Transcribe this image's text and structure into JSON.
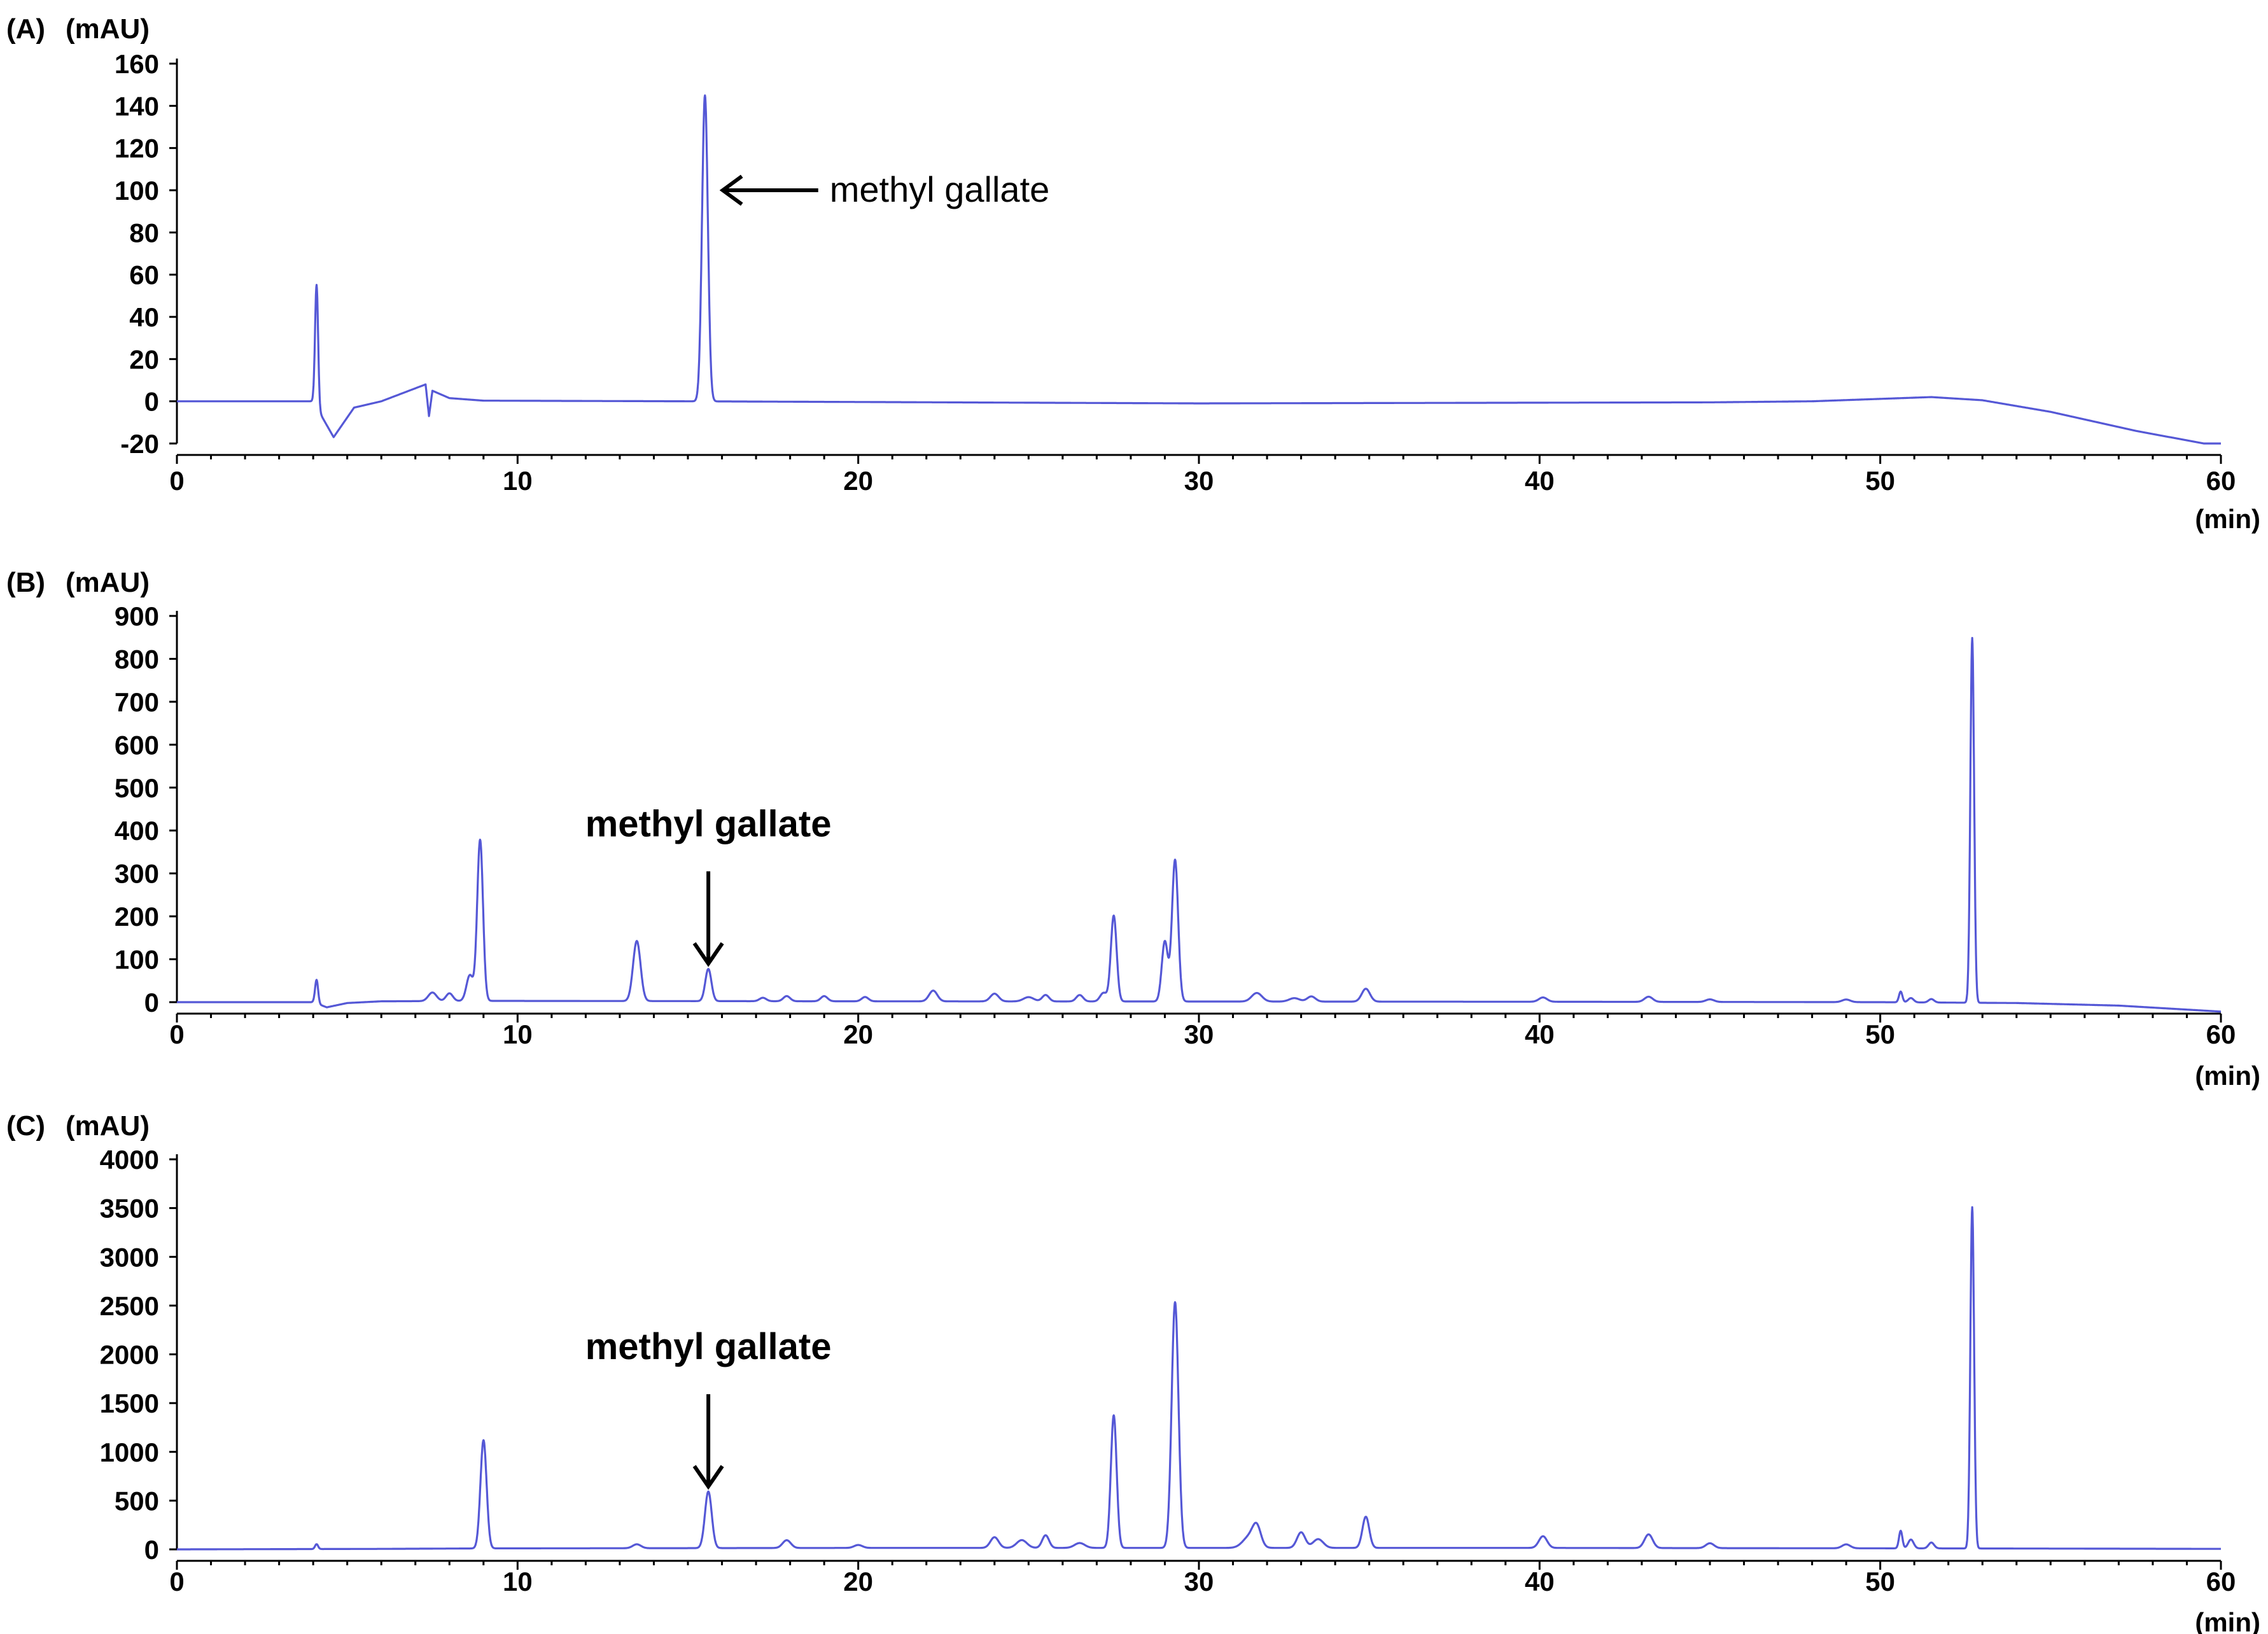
{
  "chart_data": [
    {
      "type": "line",
      "panel_label": "(A)",
      "ylabel": "(mAU)",
      "xlabel": "(min)",
      "xlim": [
        0,
        60
      ],
      "ylim": [
        -20,
        160
      ],
      "xticks": [
        0,
        10,
        20,
        30,
        40,
        50,
        60
      ],
      "yticks": [
        -20,
        0,
        20,
        40,
        60,
        80,
        100,
        120,
        140,
        160
      ],
      "baseline": [
        [
          0,
          0
        ],
        [
          4.0,
          0
        ],
        [
          4.6,
          -17
        ],
        [
          5.2,
          -3
        ],
        [
          6.0,
          0
        ],
        [
          7.3,
          8
        ],
        [
          7.4,
          -7
        ],
        [
          7.5,
          5
        ],
        [
          8.0,
          1.5
        ],
        [
          9.0,
          0.3
        ],
        [
          15.0,
          0
        ],
        [
          30.0,
          -1
        ],
        [
          45.0,
          -0.5
        ],
        [
          48.0,
          0
        ],
        [
          51.5,
          2
        ],
        [
          53.0,
          0.5
        ],
        [
          55.0,
          -5
        ],
        [
          57.5,
          -14
        ],
        [
          59.5,
          -20
        ],
        [
          60.0,
          -20
        ]
      ],
      "peaks": [
        [
          4.1,
          58,
          0.045
        ],
        [
          15.5,
          145,
          0.085
        ]
      ],
      "annotation": {
        "text": "methyl gallate",
        "x": 15.5,
        "y": 100,
        "bold": false,
        "arrow": "left"
      }
    },
    {
      "type": "line",
      "panel_label": "(B)",
      "ylabel": "(mAU)",
      "xlabel": "(min)",
      "xlim": [
        0,
        60
      ],
      "ylim": [
        -20,
        900
      ],
      "xticks": [
        0,
        10,
        20,
        30,
        40,
        50,
        60
      ],
      "yticks": [
        0,
        100,
        200,
        300,
        400,
        500,
        600,
        700,
        800,
        900
      ],
      "baseline": [
        [
          0,
          0
        ],
        [
          4.0,
          0
        ],
        [
          4.4,
          -12
        ],
        [
          5.0,
          -2
        ],
        [
          6.0,
          2
        ],
        [
          9.0,
          3
        ],
        [
          20.0,
          2
        ],
        [
          40.0,
          1
        ],
        [
          50.0,
          0
        ],
        [
          54.0,
          -2
        ],
        [
          57.0,
          -8
        ],
        [
          60.0,
          -22
        ]
      ],
      "peaks": [
        [
          4.1,
          55,
          0.045
        ],
        [
          7.5,
          20,
          0.12
        ],
        [
          8.0,
          18,
          0.1
        ],
        [
          8.6,
          60,
          0.1
        ],
        [
          8.9,
          375,
          0.085
        ],
        [
          13.5,
          140,
          0.11
        ],
        [
          15.6,
          75,
          0.09
        ],
        [
          17.2,
          8,
          0.1
        ],
        [
          17.9,
          12,
          0.1
        ],
        [
          19.0,
          12,
          0.1
        ],
        [
          20.2,
          10,
          0.1
        ],
        [
          22.2,
          25,
          0.12
        ],
        [
          24.0,
          18,
          0.12
        ],
        [
          25.0,
          10,
          0.15
        ],
        [
          25.5,
          15,
          0.1
        ],
        [
          26.5,
          15,
          0.1
        ],
        [
          27.2,
          20,
          0.1
        ],
        [
          27.5,
          200,
          0.085
        ],
        [
          29.0,
          140,
          0.09
        ],
        [
          29.3,
          330,
          0.09
        ],
        [
          31.7,
          20,
          0.15
        ],
        [
          32.8,
          8,
          0.15
        ],
        [
          33.3,
          12,
          0.12
        ],
        [
          34.9,
          30,
          0.12
        ],
        [
          40.1,
          10,
          0.12
        ],
        [
          43.2,
          12,
          0.12
        ],
        [
          45.0,
          6,
          0.12
        ],
        [
          49.0,
          6,
          0.12
        ],
        [
          50.6,
          25,
          0.05
        ],
        [
          50.9,
          10,
          0.08
        ],
        [
          51.5,
          8,
          0.08
        ],
        [
          52.7,
          850,
          0.055
        ]
      ],
      "annotation": {
        "text": "methyl gallate",
        "x": 15.6,
        "y": 75,
        "bold": true,
        "arrow": "down"
      }
    },
    {
      "type": "line",
      "panel_label": "(C)",
      "ylabel": "(mAU)",
      "xlabel": "(min)",
      "xlim": [
        0,
        60
      ],
      "ylim": [
        -20,
        4000
      ],
      "xticks": [
        0,
        10,
        20,
        30,
        40,
        50,
        60
      ],
      "yticks": [
        0,
        500,
        1000,
        1500,
        2000,
        2500,
        3000,
        3500,
        4000
      ],
      "baseline": [
        [
          0,
          0
        ],
        [
          6.0,
          5
        ],
        [
          9.0,
          10
        ],
        [
          20.0,
          15
        ],
        [
          40.0,
          15
        ],
        [
          52.0,
          10
        ],
        [
          60.0,
          5
        ]
      ],
      "peaks": [
        [
          4.1,
          50,
          0.045
        ],
        [
          9.0,
          1110,
          0.09
        ],
        [
          13.5,
          40,
          0.12
        ],
        [
          15.6,
          580,
          0.1
        ],
        [
          17.9,
          80,
          0.12
        ],
        [
          20.0,
          30,
          0.12
        ],
        [
          24.0,
          110,
          0.12
        ],
        [
          24.8,
          80,
          0.15
        ],
        [
          25.5,
          130,
          0.1
        ],
        [
          26.5,
          50,
          0.15
        ],
        [
          27.5,
          1360,
          0.085
        ],
        [
          29.3,
          2520,
          0.1
        ],
        [
          31.5,
          120,
          0.2
        ],
        [
          31.7,
          180,
          0.12
        ],
        [
          33.0,
          160,
          0.12
        ],
        [
          33.5,
          90,
          0.15
        ],
        [
          34.9,
          320,
          0.1
        ],
        [
          40.1,
          120,
          0.12
        ],
        [
          43.2,
          140,
          0.12
        ],
        [
          45.0,
          50,
          0.12
        ],
        [
          49.0,
          40,
          0.12
        ],
        [
          50.6,
          180,
          0.05
        ],
        [
          50.9,
          90,
          0.08
        ],
        [
          51.5,
          60,
          0.08
        ],
        [
          52.7,
          3500,
          0.055
        ]
      ],
      "annotation": {
        "text": "methyl gallate",
        "x": 15.6,
        "y": 580,
        "bold": true,
        "arrow": "down"
      }
    }
  ]
}
